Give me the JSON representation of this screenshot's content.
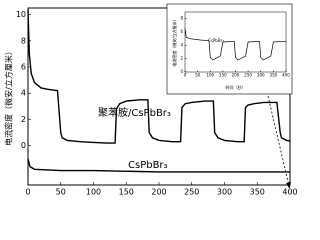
{
  "chart_data": [
    {
      "type": "line",
      "ylabel": "电流密度（微安/立方厘米）",
      "xlim": [
        0,
        400
      ],
      "xticks": [
        0,
        50,
        100,
        150,
        200,
        250,
        300,
        350,
        400
      ],
      "ylim": [
        -3,
        10.5
      ],
      "yticks": [
        0,
        2,
        4,
        6,
        8,
        10
      ],
      "series": [
        {
          "name": "聚苯胺/CsPbBr₃",
          "color": "#000000",
          "x": [
            0,
            2,
            5,
            10,
            20,
            30,
            45,
            50,
            52,
            60,
            80,
            100,
            120,
            133,
            135,
            140,
            150,
            170,
            183,
            185,
            190,
            200,
            220,
            233,
            235,
            240,
            250,
            270,
            283,
            285,
            290,
            300,
            320,
            330,
            332,
            336,
            345,
            360,
            380,
            385,
            387,
            395,
            400
          ],
          "values": [
            10.4,
            7,
            5.5,
            4.8,
            4.4,
            4.3,
            4.2,
            1.0,
            0.6,
            0.4,
            0.3,
            0.25,
            0.2,
            0.2,
            2.8,
            3.2,
            3.4,
            3.5,
            3.5,
            1.0,
            0.6,
            0.4,
            0.3,
            0.3,
            2.9,
            3.2,
            3.3,
            3.4,
            3.4,
            1.0,
            0.6,
            0.4,
            0.3,
            0.3,
            2.9,
            3.1,
            3.2,
            3.3,
            3.3,
            1.0,
            0.6,
            0.4,
            0.35
          ]
        },
        {
          "name": "CsPbBr₃",
          "color": "#000000",
          "x": [
            0,
            3,
            10,
            50,
            100,
            200,
            300,
            400
          ],
          "values": [
            -1.0,
            -1.6,
            -1.8,
            -1.9,
            -1.9,
            -2.0,
            -2.0,
            -2.0
          ]
        }
      ]
    },
    {
      "type": "line",
      "xlabel": "时间（秒）",
      "ylabel": "电流密度（微安/立方厘米）",
      "xlim": [
        0,
        400
      ],
      "xticks": [
        0,
        50,
        100,
        150,
        200,
        250,
        300,
        350,
        400
      ],
      "ylim": [
        0,
        9
      ],
      "yticks": [
        0,
        2,
        4,
        6,
        8
      ],
      "series": [
        {
          "name": "CsPbBr₃",
          "color": "#000000",
          "x": [
            0,
            5,
            20,
            60,
            95,
            100,
            110,
            140,
            150,
            195,
            200,
            210,
            240,
            250,
            295,
            300,
            310,
            340,
            350,
            395,
            400
          ],
          "values": [
            6.5,
            5.2,
            5,
            4.8,
            4.7,
            2.2,
            1.8,
            2.4,
            4.5,
            4.6,
            2.2,
            1.8,
            2.4,
            4.5,
            4.6,
            2.2,
            1.8,
            2.4,
            4.5,
            4.6,
            4.6
          ]
        }
      ]
    }
  ]
}
